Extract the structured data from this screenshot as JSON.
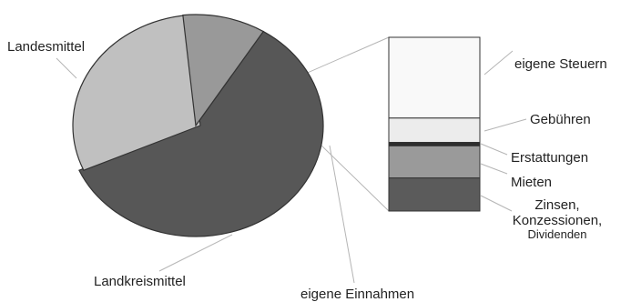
{
  "chart_data": [
    {
      "type": "pie",
      "labels": [
        "Landesmittel",
        "eigene Einnahmen",
        "Landkreismittel"
      ],
      "values": [
        59.5,
        30.0,
        10.5
      ],
      "colors": [
        "#575757",
        "#c0c0c0",
        "#999999"
      ],
      "exploded_slice": "eigene Einnahmen"
    },
    {
      "type": "bar",
      "stacked": true,
      "categories": [
        "eigene Steuern",
        "Gebühren",
        "Erstattungen",
        "Mieten",
        "Zinsen, Konzessionen, Dividenden"
      ],
      "label_lines": [
        [
          "eigene Steuern"
        ],
        [
          "Gebühren"
        ],
        [
          "Erstattungen"
        ],
        [
          "Mieten"
        ],
        [
          "Zinsen,",
          "Konzessionen,",
          "Dividenden"
        ]
      ],
      "values": [
        46.5,
        14.0,
        2.0,
        18.5,
        19.0
      ],
      "unit": "%",
      "colors": [
        "#f9f9f9",
        "#ececec",
        "#2e2e2e",
        "#9a9a9a",
        "#5b5b5b"
      ]
    }
  ]
}
